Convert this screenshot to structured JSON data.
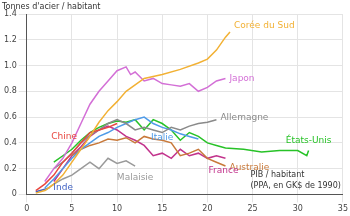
{
  "chart_data": {
    "type": "line",
    "y_label": "Tonnes d'acier / habitant",
    "x_label": "PIB / habitant\n(PPA, en GK$ de 1990)",
    "xlim": [
      0,
      35
    ],
    "xticks": [
      0,
      5,
      10,
      15,
      20,
      25,
      30,
      35
    ],
    "ylim": [
      0,
      1.4
    ],
    "yticks": [
      0,
      0.2,
      0.4,
      0.6,
      0.8,
      {
        "value": 1,
        "label": "1.0"
      },
      1.2,
      1.4
    ],
    "grid": true,
    "series": [
      {
        "name": "Corée du Sud",
        "color": "#f2b134",
        "x": [
          1,
          2,
          3,
          4,
          5,
          6,
          7,
          8,
          9,
          10,
          11,
          12,
          13,
          15,
          17,
          19,
          20,
          21,
          22,
          22.5
        ],
        "values": [
          0.01,
          0.03,
          0.08,
          0.15,
          0.25,
          0.35,
          0.45,
          0.56,
          0.65,
          0.72,
          0.8,
          0.85,
          0.9,
          0.93,
          0.97,
          1.02,
          1.05,
          1.12,
          1.22,
          1.26
        ]
      },
      {
        "name": "Japon",
        "color": "#d36fd6",
        "x": [
          2,
          3,
          4,
          5,
          6,
          7,
          8,
          9,
          10,
          11,
          11.5,
          12,
          13,
          14,
          15,
          16,
          17,
          18,
          19,
          20,
          21,
          22
        ],
        "values": [
          0.1,
          0.2,
          0.28,
          0.4,
          0.55,
          0.7,
          0.8,
          0.88,
          0.96,
          0.99,
          0.93,
          0.95,
          0.88,
          0.9,
          0.86,
          0.85,
          0.84,
          0.86,
          0.8,
          0.83,
          0.88,
          0.9
        ]
      },
      {
        "name": "Chine",
        "color": "#e8473f",
        "x": [
          1,
          2,
          3,
          4,
          5,
          6,
          7,
          8,
          9,
          10
        ],
        "values": [
          0.03,
          0.08,
          0.15,
          0.25,
          0.32,
          0.4,
          0.48,
          0.5,
          0.52,
          0.55
        ]
      },
      {
        "name": "Allemagne",
        "color": "#8a8a8a",
        "x": [
          3,
          4,
          5,
          6,
          7,
          8,
          9,
          10,
          11,
          12,
          13,
          14,
          15,
          16,
          17,
          18,
          19,
          20,
          21
        ],
        "values": [
          0.2,
          0.25,
          0.32,
          0.4,
          0.46,
          0.5,
          0.55,
          0.58,
          0.55,
          0.5,
          0.52,
          0.5,
          0.48,
          0.52,
          0.5,
          0.53,
          0.55,
          0.56,
          0.58
        ]
      },
      {
        "name": "Italie",
        "color": "#4f9be8",
        "x": [
          2,
          3,
          4,
          5,
          6,
          7,
          8,
          9,
          10,
          11,
          12,
          13,
          14,
          15,
          16,
          17,
          18,
          19
        ],
        "values": [
          0.05,
          0.12,
          0.2,
          0.28,
          0.35,
          0.4,
          0.45,
          0.48,
          0.52,
          0.55,
          0.58,
          0.6,
          0.55,
          0.52,
          0.5,
          0.47,
          0.45,
          0.43
        ]
      },
      {
        "name": "États-Unis",
        "color": "#27c227",
        "x": [
          3,
          4,
          5,
          6,
          7,
          8,
          9,
          10,
          11,
          12,
          13,
          14,
          15,
          16,
          17,
          18,
          19,
          20,
          21,
          22,
          24,
          26,
          28,
          30,
          31,
          31.2
        ],
        "values": [
          0.25,
          0.3,
          0.35,
          0.42,
          0.48,
          0.52,
          0.55,
          0.57,
          0.56,
          0.58,
          0.5,
          0.58,
          0.55,
          0.5,
          0.42,
          0.48,
          0.45,
          0.4,
          0.38,
          0.36,
          0.35,
          0.33,
          0.34,
          0.34,
          0.3,
          0.34
        ]
      },
      {
        "name": "Australie",
        "color": "#c8793a",
        "x": [
          5,
          6,
          7,
          8,
          9,
          10,
          11,
          12,
          13,
          14,
          15,
          16,
          17,
          18,
          19,
          20,
          21,
          22
        ],
        "values": [
          0.3,
          0.35,
          0.38,
          0.4,
          0.43,
          0.42,
          0.44,
          0.4,
          0.45,
          0.43,
          0.42,
          0.4,
          0.3,
          0.32,
          0.35,
          0.28,
          0.25,
          0.22
        ]
      },
      {
        "name": "France",
        "color": "#c2338c",
        "x": [
          3,
          4,
          5,
          6,
          7,
          8,
          9,
          10,
          11,
          12,
          13,
          14,
          15,
          16,
          17,
          18,
          19,
          20,
          21,
          22
        ],
        "values": [
          0.1,
          0.2,
          0.3,
          0.37,
          0.45,
          0.5,
          0.53,
          0.5,
          0.45,
          0.42,
          0.38,
          0.3,
          0.32,
          0.28,
          0.35,
          0.3,
          0.32,
          0.28,
          0.3,
          0.28
        ]
      },
      {
        "name": "Malaisie",
        "color": "#9a9a9a",
        "x": [
          2,
          3,
          4,
          5,
          6,
          7,
          8,
          9,
          10,
          11,
          12
        ],
        "values": [
          0.03,
          0.08,
          0.12,
          0.15,
          0.2,
          0.25,
          0.2,
          0.28,
          0.24,
          0.26,
          0.22
        ]
      },
      {
        "name": "Inde",
        "color": "#4263c4",
        "x": [
          1,
          1.5,
          2,
          2.5
        ],
        "values": [
          0.02,
          0.03,
          0.04,
          0.05
        ]
      }
    ]
  }
}
